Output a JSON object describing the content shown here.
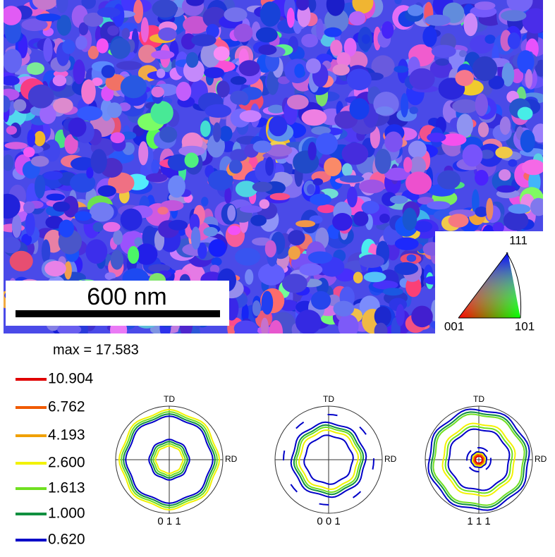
{
  "ebsd_map": {
    "scale_bar": "600 nm",
    "ipf_key": {
      "top": "111",
      "left": "001",
      "right": "101"
    }
  },
  "contour_legend": {
    "max_label": "max = 17.583",
    "levels": [
      {
        "label": "10.904",
        "color": "#e00000"
      },
      {
        "label": "6.762",
        "color": "#f05a00"
      },
      {
        "label": "4.193",
        "color": "#f0a000"
      },
      {
        "label": "2.600",
        "color": "#f2f200"
      },
      {
        "label": "1.613",
        "color": "#70e020"
      },
      {
        "label": "1.000",
        "color": "#109040"
      },
      {
        "label": "0.620",
        "color": "#0000c8"
      }
    ]
  },
  "pole_figures": [
    {
      "td": "TD",
      "rd": "RD",
      "label": "0 1 1"
    },
    {
      "td": "TD",
      "rd": "RD",
      "label": "0 0 1"
    },
    {
      "td": "TD",
      "rd": "RD",
      "label": "1 1 1"
    }
  ]
}
